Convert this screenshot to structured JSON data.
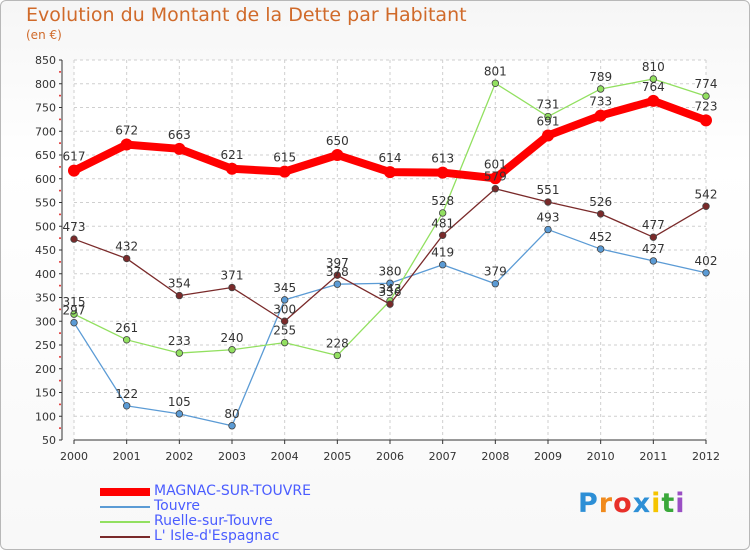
{
  "header": {
    "title": "Evolution du Montant de la Dette par Habitant",
    "subtitle": "(en €)"
  },
  "chart_data": {
    "type": "line",
    "title": "Evolution du Montant de la Dette par Habitant",
    "subtitle": "(en €)",
    "xlabel": "",
    "ylabel": "",
    "x": [
      "2000",
      "2001",
      "2002",
      "2003",
      "2004",
      "2005",
      "2006",
      "2007",
      "2008",
      "2009",
      "2010",
      "2011",
      "2012"
    ],
    "ylim": [
      50,
      850
    ],
    "yticks": [
      50,
      100,
      150,
      200,
      250,
      300,
      350,
      400,
      450,
      500,
      550,
      600,
      650,
      700,
      750,
      800,
      850
    ],
    "grid": true,
    "legend_position": "bottom-left",
    "series": [
      {
        "name": "MAGNAC-SUR-TOUVRE",
        "color": "#ff0000",
        "values": [
          617,
          672,
          663,
          621,
          615,
          650,
          614,
          613,
          601,
          691,
          733,
          764,
          723
        ]
      },
      {
        "name": "Touvre",
        "color": "#5b9bd5",
        "values": [
          297,
          122,
          105,
          80,
          345,
          378,
          380,
          419,
          379,
          493,
          452,
          427,
          402
        ]
      },
      {
        "name": "Ruelle-sur-Touvre",
        "color": "#92e060",
        "values": [
          315,
          261,
          233,
          240,
          255,
          228,
          343,
          528,
          801,
          731,
          789,
          810,
          774
        ]
      },
      {
        "name": "L' Isle-d'Espagnac",
        "color": "#7a2a2a",
        "values": [
          473,
          432,
          354,
          371,
          300,
          397,
          336,
          481,
          579,
          551,
          526,
          477,
          542
        ]
      }
    ]
  },
  "legend": {
    "items": [
      {
        "label": "MAGNAC-SUR-TOUVRE",
        "color": "#ff0000",
        "text_color": "#4a5cff"
      },
      {
        "label": "Touvre",
        "color": "#5b9bd5",
        "text_color": "#4a5cff"
      },
      {
        "label": "Ruelle-sur-Touvre",
        "color": "#92e060",
        "text_color": "#4a5cff"
      },
      {
        "label": "L' Isle-d'Espagnac",
        "color": "#7a2a2a",
        "text_color": "#4a5cff"
      }
    ]
  },
  "logo": {
    "letters": [
      "P",
      "r",
      "o",
      "x",
      "i",
      "t",
      "i"
    ],
    "colors": [
      "#2d8fd6",
      "#f08a1c",
      "#e8302a",
      "#2d8fd6",
      "#f5c400",
      "#3aa83a",
      "#9a4fc4"
    ]
  }
}
